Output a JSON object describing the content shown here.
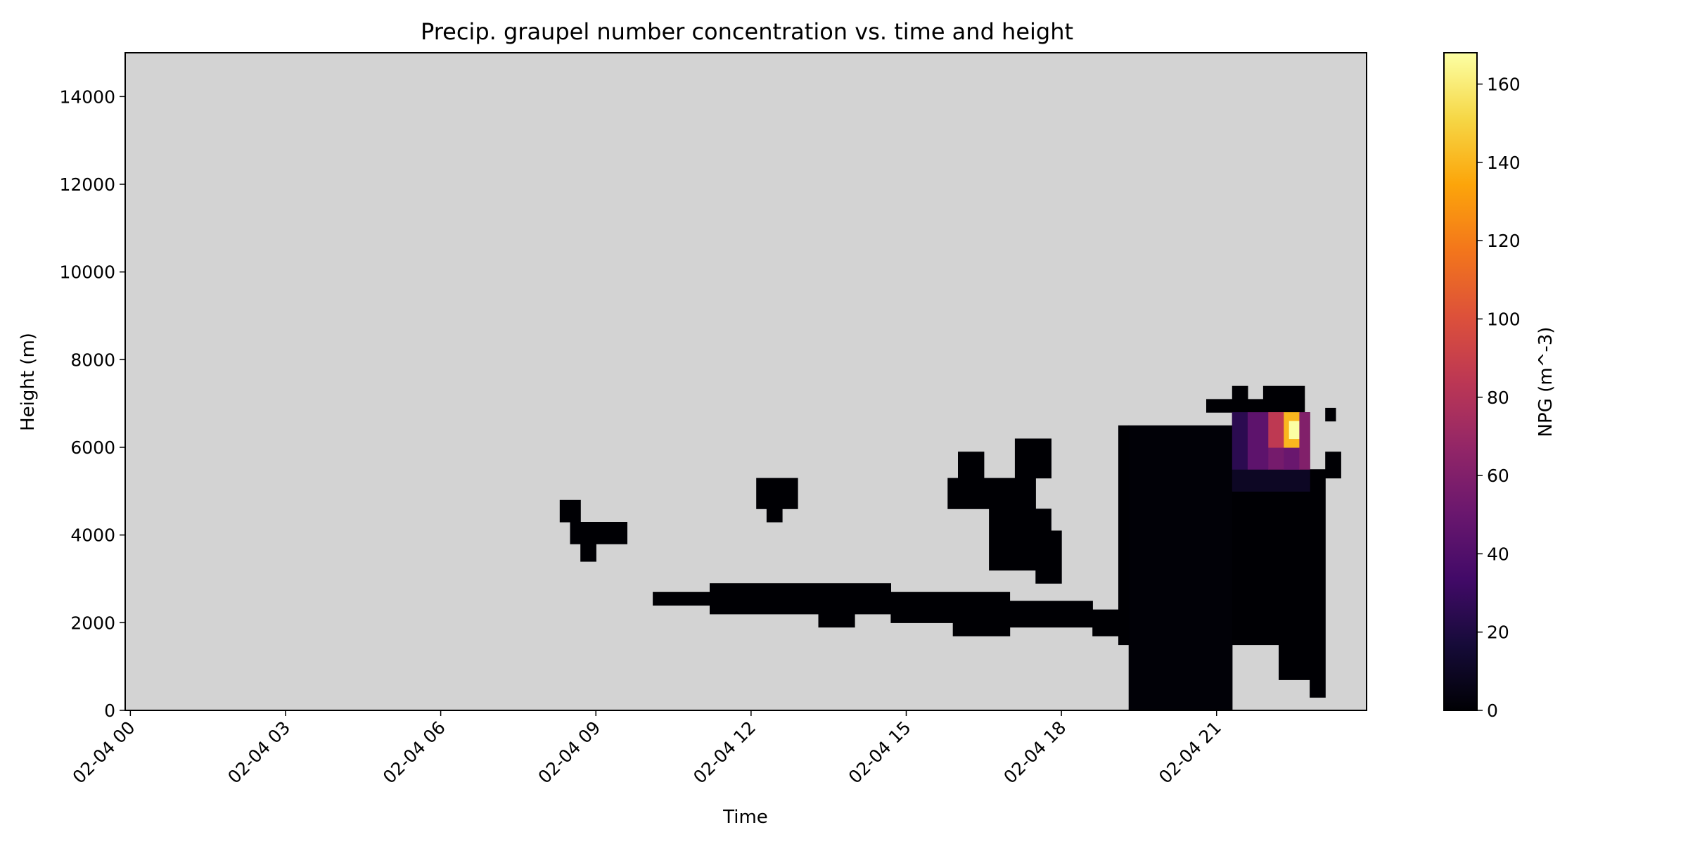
{
  "chart_data": {
    "type": "heatmap",
    "title": "Precip. graupel number concentration vs. time and height",
    "xlabel": "Time",
    "ylabel": "Height (m)",
    "colorbar_label": "NPG (m^-3)",
    "colormap": "inferno",
    "background_color": "#d3d3d3",
    "x_start": "02-04 00",
    "x_tick_labels": [
      "02-04 00",
      "02-04 03",
      "02-04 06",
      "02-04 09",
      "02-04 12",
      "02-04 15",
      "02-04 18",
      "02-04 21"
    ],
    "x_ticks_hours": [
      0,
      3,
      6,
      9,
      12,
      15,
      18,
      21
    ],
    "xlim_hours": [
      -0.1,
      23.9
    ],
    "y_tick_labels": [
      "0",
      "2000",
      "4000",
      "6000",
      "8000",
      "10000",
      "12000",
      "14000"
    ],
    "y_ticks": [
      0,
      2000,
      4000,
      6000,
      8000,
      10000,
      12000,
      14000
    ],
    "ylim": [
      0,
      15000
    ],
    "colorbar_tick_labels": [
      "0",
      "20",
      "40",
      "60",
      "80",
      "100",
      "120",
      "140",
      "160"
    ],
    "colorbar_ticks": [
      0,
      20,
      40,
      60,
      80,
      100,
      120,
      140,
      160
    ],
    "clim": [
      0,
      168
    ],
    "time_step_hours": 0.167,
    "height_step_m": 200,
    "nonzero_regions": [
      {
        "t0": 8.3,
        "t1": 8.7,
        "h0": 4300,
        "h1": 4800,
        "v": 0
      },
      {
        "t0": 8.5,
        "t1": 9.6,
        "h0": 3800,
        "h1": 4300,
        "v": 0
      },
      {
        "t0": 8.7,
        "t1": 9.0,
        "h0": 3400,
        "h1": 3800,
        "v": 0
      },
      {
        "t0": 12.1,
        "t1": 12.9,
        "h0": 4600,
        "h1": 5300,
        "v": 0
      },
      {
        "t0": 12.3,
        "t1": 12.6,
        "h0": 4300,
        "h1": 4600,
        "v": 0
      },
      {
        "t0": 10.1,
        "t1": 11.2,
        "h0": 2400,
        "h1": 2700,
        "v": 0
      },
      {
        "t0": 11.2,
        "t1": 14.7,
        "h0": 2200,
        "h1": 2900,
        "v": 0
      },
      {
        "t0": 13.3,
        "t1": 14.0,
        "h0": 1900,
        "h1": 2200,
        "v": 0
      },
      {
        "t0": 14.7,
        "t1": 17.0,
        "h0": 2000,
        "h1": 2700,
        "v": 0
      },
      {
        "t0": 15.9,
        "t1": 17.0,
        "h0": 1700,
        "h1": 2000,
        "v": 0
      },
      {
        "t0": 17.0,
        "t1": 18.6,
        "h0": 1900,
        "h1": 2500,
        "v": 0
      },
      {
        "t0": 18.6,
        "t1": 19.2,
        "h0": 1700,
        "h1": 2300,
        "v": 0
      },
      {
        "t0": 15.8,
        "t1": 17.5,
        "h0": 4600,
        "h1": 5300,
        "v": 0
      },
      {
        "t0": 16.0,
        "t1": 16.5,
        "h0": 5300,
        "h1": 5900,
        "v": 0
      },
      {
        "t0": 17.1,
        "t1": 17.8,
        "h0": 5300,
        "h1": 6200,
        "v": 0
      },
      {
        "t0": 16.6,
        "t1": 17.8,
        "h0": 3200,
        "h1": 4600,
        "v": 0
      },
      {
        "t0": 17.5,
        "t1": 18.0,
        "h0": 2900,
        "h1": 4100,
        "v": 0
      },
      {
        "t0": 19.3,
        "t1": 21.3,
        "h0": 0,
        "h1": 6500,
        "v": 1
      },
      {
        "t0": 19.1,
        "t1": 19.3,
        "h0": 1500,
        "h1": 6500,
        "v": 0
      },
      {
        "t0": 21.3,
        "t1": 22.2,
        "h0": 1500,
        "h1": 6800,
        "v": 0
      },
      {
        "t0": 22.2,
        "t1": 22.8,
        "h0": 700,
        "h1": 6800,
        "v": 0
      },
      {
        "t0": 22.8,
        "t1": 23.1,
        "h0": 300,
        "h1": 5500,
        "v": 0
      },
      {
        "t0": 23.1,
        "t1": 23.4,
        "h0": 5300,
        "h1": 5900,
        "v": 0
      },
      {
        "t0": 20.8,
        "t1": 22.7,
        "h0": 6800,
        "h1": 7100,
        "v": 0
      },
      {
        "t0": 21.3,
        "t1": 21.6,
        "h0": 7100,
        "h1": 7400,
        "v": 0
      },
      {
        "t0": 21.9,
        "t1": 22.7,
        "h0": 7100,
        "h1": 7400,
        "v": 0
      },
      {
        "t0": 23.1,
        "t1": 23.3,
        "h0": 6600,
        "h1": 6900,
        "v": 0
      },
      {
        "t0": 21.3,
        "t1": 22.8,
        "h0": 5000,
        "h1": 5500,
        "v": 10
      },
      {
        "t0": 21.3,
        "t1": 21.6,
        "h0": 5500,
        "h1": 6800,
        "v": 25
      },
      {
        "t0": 21.6,
        "t1": 22.0,
        "h0": 5500,
        "h1": 6800,
        "v": 45
      },
      {
        "t0": 22.0,
        "t1": 22.3,
        "h0": 5500,
        "h1": 6800,
        "v": 55
      },
      {
        "t0": 22.0,
        "t1": 22.3,
        "h0": 6000,
        "h1": 6800,
        "v": 85
      },
      {
        "t0": 22.3,
        "t1": 22.6,
        "h0": 5500,
        "h1": 6000,
        "v": 50
      },
      {
        "t0": 22.3,
        "t1": 22.6,
        "h0": 6000,
        "h1": 6800,
        "v": 140
      },
      {
        "t0": 22.4,
        "t1": 22.6,
        "h0": 6200,
        "h1": 6600,
        "v": 168
      },
      {
        "t0": 22.6,
        "t1": 22.8,
        "h0": 5500,
        "h1": 6800,
        "v": 60
      }
    ]
  }
}
